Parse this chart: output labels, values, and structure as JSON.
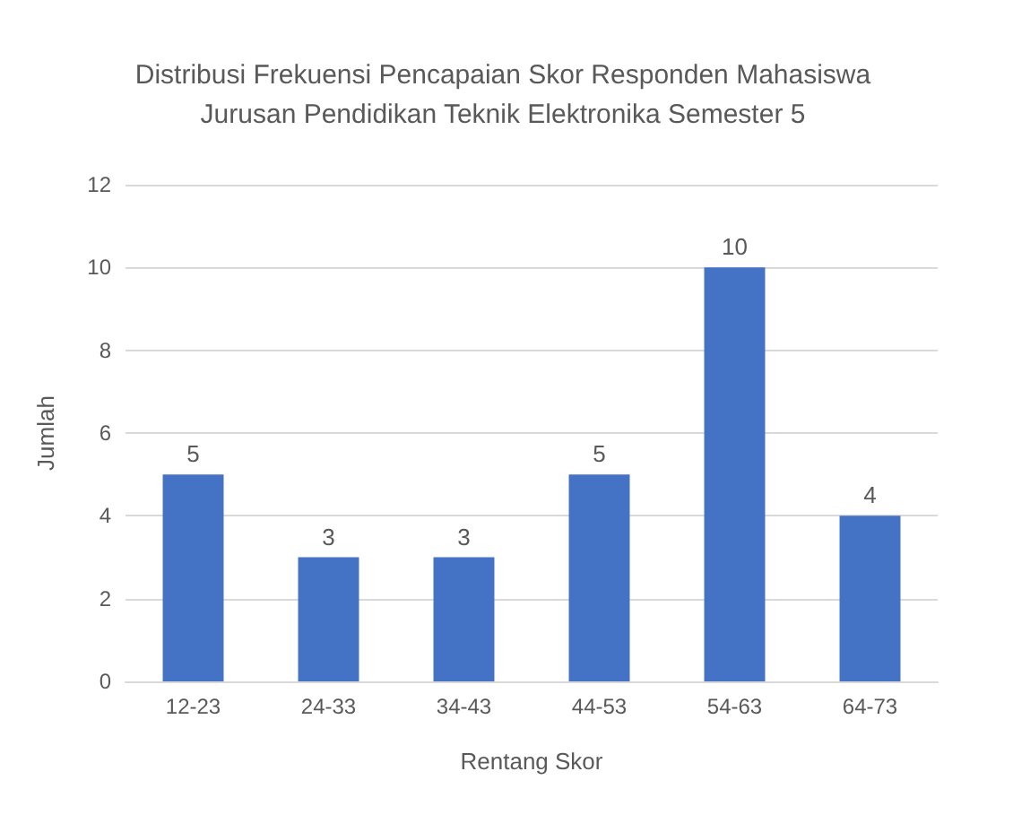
{
  "chart_data": {
    "type": "bar",
    "title": "Distribusi Frekuensi Pencapaian Skor Responden Mahasiswa\nJurusan Pendidikan Teknik Elektronika Semester 5",
    "xlabel": "Rentang Skor",
    "ylabel": "Jumlah",
    "categories": [
      "12-23",
      "24-33",
      "34-43",
      "44-53",
      "54-63",
      "64-73"
    ],
    "values": [
      5,
      3,
      3,
      5,
      10,
      4
    ],
    "color": "#4472c4",
    "ylim": [
      0,
      12
    ],
    "yticks": [
      0,
      2,
      4,
      6,
      8,
      10,
      12
    ],
    "grid": "y",
    "data_labels": true
  }
}
